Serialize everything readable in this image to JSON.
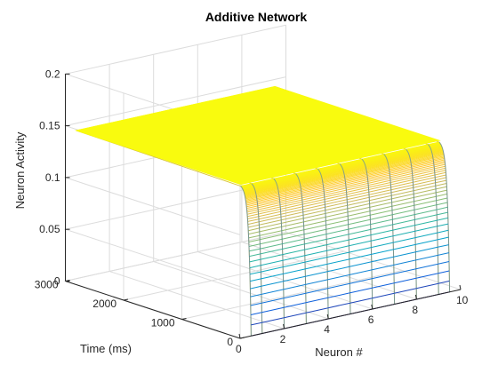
{
  "chart_data": {
    "type": "surface-mesh",
    "title": "Additive Network",
    "xlabel": "Neuron #",
    "ylabel": "Time (ms)",
    "zlabel": "Neuron Activity",
    "xlim": [
      0,
      10
    ],
    "ylim": [
      0,
      3000
    ],
    "zlim": [
      0,
      0.2
    ],
    "xticks": [
      0,
      2,
      4,
      6,
      8,
      10
    ],
    "yticks": [
      0,
      1000,
      2000,
      3000
    ],
    "zticks": [
      0,
      0.05,
      0.1,
      0.15,
      0.2
    ],
    "neurons": [
      0.5,
      1,
      2,
      3,
      4,
      5,
      6,
      7,
      8,
      9,
      9.5
    ],
    "initial_activity": 0,
    "steady_state_activity": 0.143,
    "rise_time_constant_ms": 40,
    "num_time_samples": 60,
    "colormap": "parula",
    "colormap_stops": [
      "#352a87",
      "#0f5cdd",
      "#1481d6",
      "#06a4ca",
      "#2eb7a4",
      "#87bf77",
      "#d1bb59",
      "#fec832",
      "#f9fb0e"
    ]
  }
}
